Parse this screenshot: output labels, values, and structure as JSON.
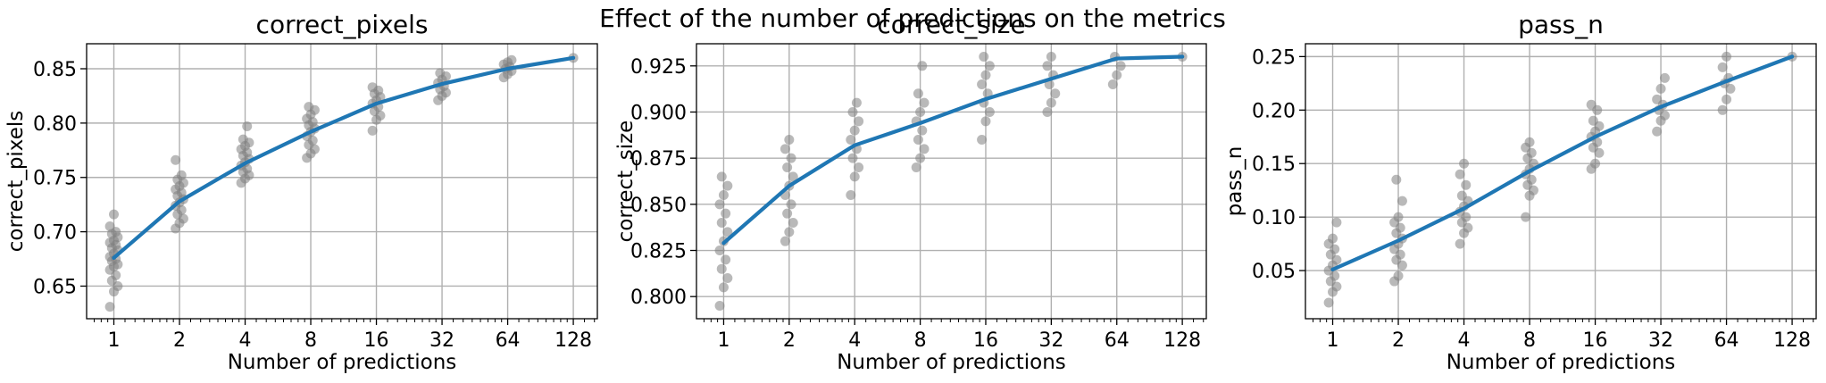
{
  "figure": {
    "suptitle": "Effect of the number of predictions on the metrics"
  },
  "chart_data": [
    {
      "type": "line",
      "title": "correct_pixels",
      "xlabel": "Number of predictions",
      "ylabel": "correct_pixels",
      "x_scale": "log2",
      "x": [
        1,
        2,
        4,
        8,
        16,
        32,
        64,
        128
      ],
      "x_tick_labels": [
        "1",
        "2",
        "4",
        "8",
        "16",
        "32",
        "64",
        "128"
      ],
      "y_ticks": [
        0.65,
        0.7,
        0.75,
        0.8,
        0.85
      ],
      "y_tick_labels": [
        "0.65",
        "0.70",
        "0.75",
        "0.80",
        "0.85"
      ],
      "ylim": [
        0.62,
        0.873
      ],
      "xlim": [
        0.75,
        165
      ],
      "grid": true,
      "mean_line": {
        "values": [
          0.676,
          0.728,
          0.763,
          0.792,
          0.818,
          0.836,
          0.85,
          0.86
        ],
        "color": "#1f77b4"
      },
      "samples": [
        [
          0.631,
          0.645,
          0.65,
          0.655,
          0.66,
          0.665,
          0.668,
          0.67,
          0.673,
          0.675,
          0.677,
          0.68,
          0.683,
          0.685,
          0.688,
          0.69,
          0.692,
          0.695,
          0.698,
          0.7,
          0.705,
          0.716
        ],
        [
          0.703,
          0.708,
          0.712,
          0.716,
          0.72,
          0.724,
          0.727,
          0.73,
          0.733,
          0.736,
          0.739,
          0.742,
          0.745,
          0.748,
          0.752,
          0.766
        ],
        [
          0.745,
          0.749,
          0.752,
          0.755,
          0.758,
          0.761,
          0.764,
          0.767,
          0.77,
          0.773,
          0.776,
          0.779,
          0.782,
          0.785,
          0.797
        ],
        [
          0.768,
          0.772,
          0.776,
          0.78,
          0.784,
          0.788,
          0.792,
          0.795,
          0.798,
          0.801,
          0.804,
          0.808,
          0.812,
          0.815
        ],
        [
          0.793,
          0.803,
          0.807,
          0.811,
          0.815,
          0.818,
          0.821,
          0.824,
          0.827,
          0.83,
          0.833
        ],
        [
          0.821,
          0.825,
          0.828,
          0.831,
          0.834,
          0.837,
          0.84,
          0.843,
          0.846
        ],
        [
          0.842,
          0.845,
          0.848,
          0.85,
          0.852,
          0.854,
          0.856,
          0.858
        ],
        [
          0.86
        ]
      ],
      "sample_color": "#808080"
    },
    {
      "type": "line",
      "title": "correct_size",
      "xlabel": "Number of predictions",
      "ylabel": "correct_size",
      "x_scale": "log2",
      "x": [
        1,
        2,
        4,
        8,
        16,
        32,
        64,
        128
      ],
      "x_tick_labels": [
        "1",
        "2",
        "4",
        "8",
        "16",
        "32",
        "64",
        "128"
      ],
      "y_ticks": [
        0.8,
        0.825,
        0.85,
        0.875,
        0.9,
        0.925
      ],
      "y_tick_labels": [
        "0.800",
        "0.825",
        "0.850",
        "0.875",
        "0.900",
        "0.925"
      ],
      "ylim": [
        0.788,
        0.937
      ],
      "xlim": [
        0.75,
        165
      ],
      "grid": true,
      "mean_line": {
        "values": [
          0.829,
          0.86,
          0.882,
          0.894,
          0.907,
          0.918,
          0.929,
          0.93
        ],
        "color": "#1f77b4"
      },
      "samples": [
        [
          0.795,
          0.805,
          0.81,
          0.815,
          0.82,
          0.825,
          0.83,
          0.835,
          0.84,
          0.845,
          0.85,
          0.855,
          0.86,
          0.865
        ],
        [
          0.83,
          0.835,
          0.84,
          0.845,
          0.85,
          0.855,
          0.86,
          0.865,
          0.87,
          0.875,
          0.88,
          0.885
        ],
        [
          0.855,
          0.865,
          0.87,
          0.875,
          0.88,
          0.885,
          0.89,
          0.895,
          0.9,
          0.905
        ],
        [
          0.87,
          0.875,
          0.88,
          0.885,
          0.89,
          0.895,
          0.9,
          0.905,
          0.91,
          0.925
        ],
        [
          0.885,
          0.895,
          0.9,
          0.905,
          0.91,
          0.915,
          0.92,
          0.925,
          0.93
        ],
        [
          0.9,
          0.905,
          0.91,
          0.915,
          0.92,
          0.925,
          0.93
        ],
        [
          0.915,
          0.92,
          0.925,
          0.93
        ],
        [
          0.93
        ]
      ],
      "sample_color": "#808080"
    },
    {
      "type": "line",
      "title": "pass_n",
      "xlabel": "Number of predictions",
      "ylabel": "pass_n",
      "x_scale": "log2",
      "x": [
        1,
        2,
        4,
        8,
        16,
        32,
        64,
        128
      ],
      "x_tick_labels": [
        "1",
        "2",
        "4",
        "8",
        "16",
        "32",
        "64",
        "128"
      ],
      "y_ticks": [
        0.05,
        0.1,
        0.15,
        0.2,
        0.25
      ],
      "y_tick_labels": [
        "0.05",
        "0.10",
        "0.15",
        "0.20",
        "0.25"
      ],
      "ylim": [
        0.005,
        0.262
      ],
      "xlim": [
        0.75,
        165
      ],
      "grid": true,
      "mean_line": {
        "values": [
          0.051,
          0.078,
          0.108,
          0.143,
          0.175,
          0.203,
          0.227,
          0.25
        ],
        "color": "#1f77b4"
      },
      "samples": [
        [
          0.02,
          0.03,
          0.035,
          0.04,
          0.045,
          0.05,
          0.055,
          0.06,
          0.065,
          0.07,
          0.075,
          0.08,
          0.095
        ],
        [
          0.04,
          0.045,
          0.055,
          0.06,
          0.065,
          0.07,
          0.075,
          0.08,
          0.085,
          0.09,
          0.095,
          0.1,
          0.115,
          0.135
        ],
        [
          0.075,
          0.085,
          0.09,
          0.095,
          0.1,
          0.105,
          0.11,
          0.115,
          0.12,
          0.13,
          0.14,
          0.15
        ],
        [
          0.1,
          0.12,
          0.125,
          0.13,
          0.135,
          0.14,
          0.145,
          0.15,
          0.155,
          0.16,
          0.165,
          0.17
        ],
        [
          0.145,
          0.15,
          0.16,
          0.165,
          0.17,
          0.175,
          0.18,
          0.185,
          0.19,
          0.2,
          0.205
        ],
        [
          0.18,
          0.19,
          0.195,
          0.2,
          0.205,
          0.21,
          0.22,
          0.23
        ],
        [
          0.2,
          0.21,
          0.22,
          0.225,
          0.23,
          0.24,
          0.25
        ],
        [
          0.25
        ]
      ],
      "sample_color": "#808080"
    }
  ]
}
